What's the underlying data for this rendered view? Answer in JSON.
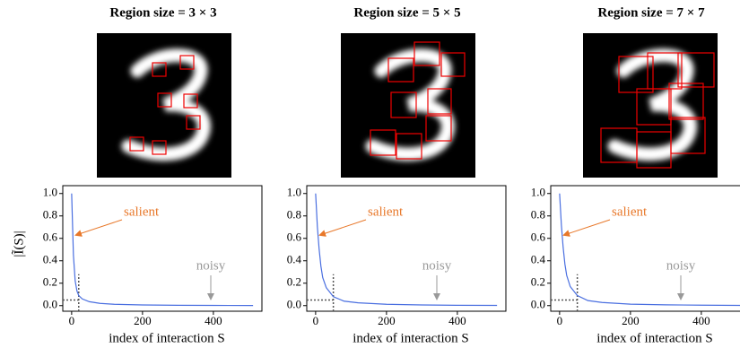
{
  "chart_data": [
    {
      "type": "line",
      "title": "Region size = 3 × 3",
      "xlabel": "index of interaction S",
      "ylabel": "|Ĩ(S)|",
      "x": [
        0,
        5,
        10,
        15,
        20,
        30,
        50,
        80,
        120,
        200,
        300,
        400,
        512
      ],
      "values": [
        1.0,
        0.45,
        0.22,
        0.13,
        0.09,
        0.06,
        0.035,
        0.02,
        0.012,
        0.006,
        0.003,
        0.002,
        0.001
      ],
      "color": "#4a6fe0",
      "xlim": [
        -25,
        537
      ],
      "ylim": [
        -0.05,
        1.07
      ],
      "xticks": [
        0,
        200,
        400
      ],
      "yticks": [
        {
          "value": 0,
          "label": "0.0"
        },
        0.2,
        0.4,
        0.6,
        0.8,
        {
          "value": 1,
          "label": "1.0"
        }
      ],
      "cutoff_x": 20,
      "cutoff_y": 0.05,
      "cutoff_line_top": 0.28,
      "annotation_salient": "salient",
      "salient_color": "#e8782a",
      "annotation_noisy": "noisy",
      "noisy_color": "#999999"
    },
    {
      "type": "line",
      "title": "Region size = 5 × 5",
      "xlabel": "index of interaction S",
      "x": [
        0,
        5,
        10,
        15,
        20,
        30,
        50,
        80,
        120,
        200,
        300,
        400,
        512
      ],
      "values": [
        1.0,
        0.7,
        0.5,
        0.35,
        0.25,
        0.16,
        0.08,
        0.04,
        0.025,
        0.012,
        0.006,
        0.003,
        0.002
      ],
      "color": "#4a6fe0",
      "xlim": [
        -25,
        537
      ],
      "ylim": [
        -0.05,
        1.07
      ],
      "xticks": [
        0,
        200,
        400
      ],
      "yticks": [
        {
          "value": 0,
          "label": "0.0"
        },
        0.2,
        0.4,
        0.6,
        0.8,
        {
          "value": 1,
          "label": "1.0"
        }
      ],
      "cutoff_x": 50,
      "cutoff_y": 0.05,
      "cutoff_line_top": 0.28,
      "annotation_salient": "salient",
      "salient_color": "#e8782a",
      "annotation_noisy": "noisy",
      "noisy_color": "#999999"
    },
    {
      "type": "line",
      "title": "Region size = 7 × 7",
      "xlabel": "index of interaction S",
      "x": [
        0,
        5,
        10,
        15,
        20,
        30,
        50,
        80,
        120,
        200,
        300,
        400,
        512
      ],
      "values": [
        1.0,
        0.72,
        0.52,
        0.37,
        0.27,
        0.17,
        0.09,
        0.045,
        0.028,
        0.013,
        0.007,
        0.004,
        0.002
      ],
      "color": "#4a6fe0",
      "xlim": [
        -25,
        537
      ],
      "ylim": [
        -0.05,
        1.07
      ],
      "xticks": [
        0,
        200,
        400
      ],
      "yticks": [
        {
          "value": 0,
          "label": "0.0"
        },
        0.2,
        0.4,
        0.6,
        0.8,
        {
          "value": 1,
          "label": "1.0"
        }
      ],
      "cutoff_x": 50,
      "cutoff_y": 0.05,
      "cutoff_line_top": 0.28,
      "annotation_salient": "salient",
      "salient_color": "#e8782a",
      "annotation_noisy": "noisy",
      "noisy_color": "#999999"
    }
  ]
}
